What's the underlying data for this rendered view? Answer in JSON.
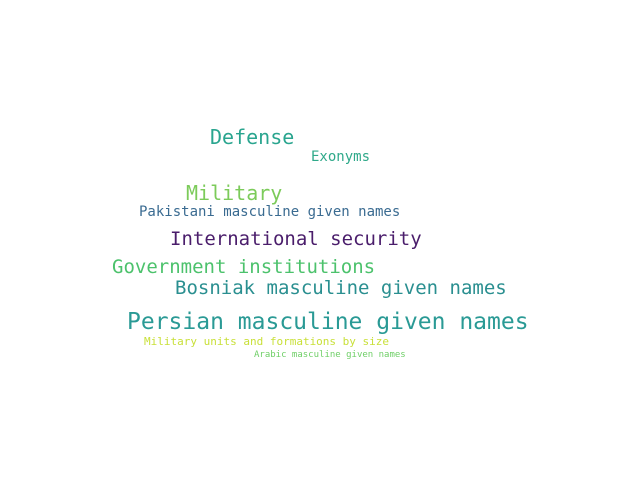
{
  "words": [
    {
      "id": "defense",
      "text": "Defense",
      "color": "#2aa58f"
    },
    {
      "id": "exonyms",
      "text": "Exonyms",
      "color": "#2fa98a"
    },
    {
      "id": "military",
      "text": "Military",
      "color": "#7ccb5a"
    },
    {
      "id": "pakistani",
      "text": "Pakistani masculine given names",
      "color": "#3a6b91"
    },
    {
      "id": "intl",
      "text": "International security",
      "color": "#4a1d6b"
    },
    {
      "id": "gov",
      "text": "Government institutions",
      "color": "#4cc26c"
    },
    {
      "id": "bosniak",
      "text": "Bosniak masculine given names",
      "color": "#2a8f90"
    },
    {
      "id": "persian",
      "text": "Persian masculine given names",
      "color": "#2a9a95"
    },
    {
      "id": "units",
      "text": "Military units and formations by size",
      "color": "#c9e03a"
    },
    {
      "id": "arabic",
      "text": "Arabic masculine given names",
      "color": "#6fcf67"
    }
  ]
}
